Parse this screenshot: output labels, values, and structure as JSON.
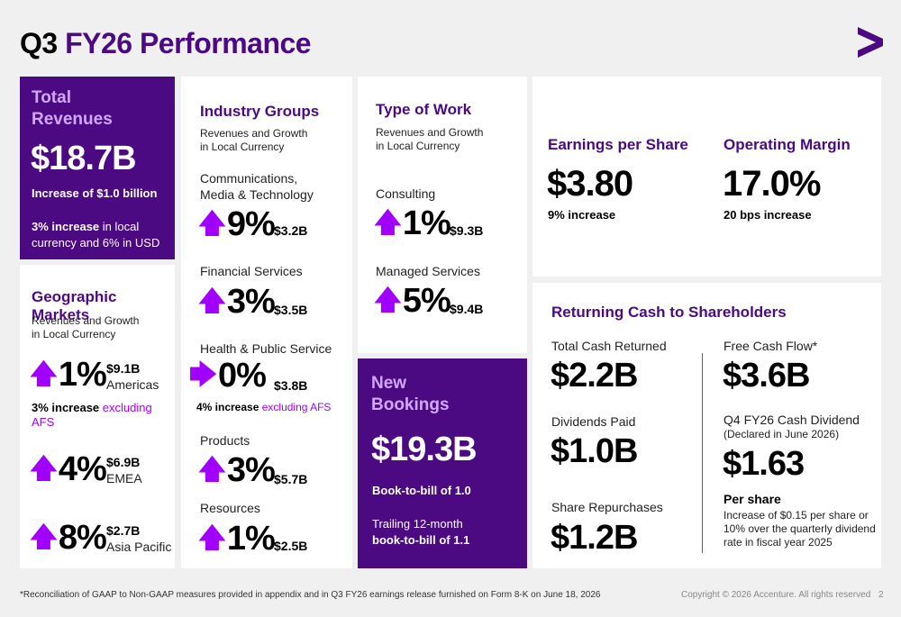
{
  "title": {
    "q": "Q3",
    "fy": "FY26 Performance"
  },
  "logo_icon": "accenture-greater-than-icon",
  "total_revenues": {
    "heading_line1": "Total",
    "heading_line2": "Revenues",
    "value": "$18.7B",
    "increase": "Increase of $1.0 billion",
    "growth_bold": "3% increase",
    "growth_rest_line1": " in local",
    "growth_line2": "currency and 6% in USD"
  },
  "geographic": {
    "heading": "Geographic Markets",
    "sub_line1": "Revenues and Growth",
    "sub_line2": "in Local Currency",
    "markets": [
      {
        "pct": "1%",
        "amount": "$9.1B",
        "name": "Americas"
      },
      {
        "pct": "4%",
        "amount": "$6.9B",
        "name": "EMEA"
      },
      {
        "pct": "8%",
        "amount": "$2.7B",
        "name": "Asia Pacific"
      }
    ],
    "note_bold": "3% increase",
    "note_accent": " excluding AFS"
  },
  "industry": {
    "heading": "Industry Groups",
    "sub_line1": "Revenues and Growth",
    "sub_line2": "in Local Currency",
    "groups": [
      {
        "label_line1": "Communications,",
        "label_line2": "Media & Technology",
        "pct": "9%",
        "amount": "$3.2B"
      },
      {
        "label_line1": "Financial Services",
        "pct": "3%",
        "amount": "$3.5B"
      },
      {
        "label_line1": "Health & Public Service",
        "pct": "0%",
        "amount": "$3.8B"
      },
      {
        "label_line1": "Products",
        "pct": "3%",
        "amount": "$5.7B"
      },
      {
        "label_line1": "Resources",
        "pct": "1%",
        "amount": "$2.5B"
      }
    ],
    "health_note_bold": "4% increase",
    "health_note_accent": " excluding AFS"
  },
  "type_of_work": {
    "heading": "Type of Work",
    "sub_line1": "Revenues and Growth",
    "sub_line2": "in Local Currency",
    "items": [
      {
        "label": "Consulting",
        "pct": "1%",
        "amount": "$9.3B"
      },
      {
        "label": "Managed Services",
        "pct": "5%",
        "amount": "$9.4B"
      }
    ]
  },
  "new_bookings": {
    "heading_line1": "New",
    "heading_line2": "Bookings",
    "value": "$19.3B",
    "btb": "Book-to-bill of 1.0",
    "trailing_line1": "Trailing 12-month",
    "trailing_line2": "book-to-bill of  1.1"
  },
  "eps": {
    "heading": "Earnings per Share",
    "value": "$3.80",
    "note": "9% increase"
  },
  "operating_margin": {
    "heading": "Operating Margin",
    "value": "17.0%",
    "note": "20 bps increase"
  },
  "cash": {
    "heading": "Returning Cash to Shareholders",
    "total_label": "Total Cash Returned",
    "total_value": "$2.2B",
    "dividends_label": "Dividends Paid",
    "dividends_value": "$1.0B",
    "repurchases_label": "Share Repurchases",
    "repurchases_value": "$1.2B",
    "fcf_label": "Free Cash Flow*",
    "fcf_value": "$3.6B",
    "div_label": "Q4 FY26 Cash Dividend",
    "div_sub": "(Declared in June 2026)",
    "div_value": "$1.63",
    "per_share": "Per share",
    "per_share_note_line1": "Increase of $0.15 per share or",
    "per_share_note_line2": "10% over the quarterly dividend",
    "per_share_note_line3": "rate in fiscal year 2025"
  },
  "footer": {
    "note": "*Reconciliation of GAAP to Non-GAAP measures provided in appendix and in Q3 FY26 earnings release furnished on Form 8-K on June 18, 2026",
    "copyright": "Copyright © 2026 Accenture. All rights reserved",
    "page": "2"
  },
  "arrows": {
    "up": "🡅",
    "right": "🡆"
  },
  "colors": {
    "brand_purple": "#4b0a82",
    "accent_purple": "#a100ff",
    "light_purple": "#d3a6ff"
  }
}
